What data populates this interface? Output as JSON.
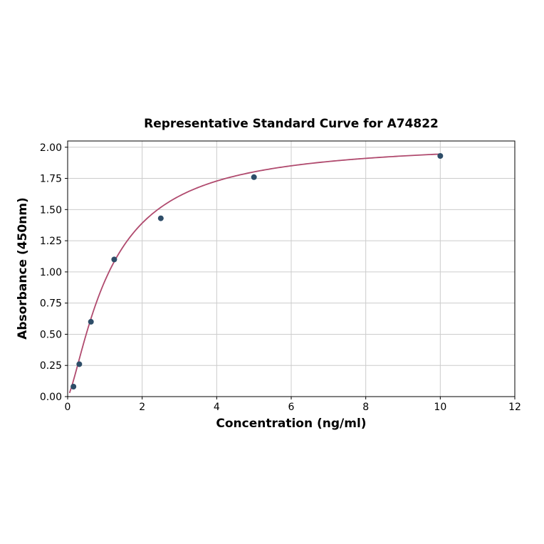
{
  "chart_data": {
    "type": "scatter",
    "title": "Representative Standard Curve for A74822",
    "xlabel": "Concentration (ng/ml)",
    "ylabel": "Absorbance (450nm)",
    "xlim": [
      0,
      12
    ],
    "ylim": [
      0,
      2.05
    ],
    "x_ticks": [
      0,
      2,
      4,
      6,
      8,
      10,
      12
    ],
    "x_tick_labels": [
      "0",
      "2",
      "4",
      "6",
      "8",
      "10",
      "12"
    ],
    "y_ticks": [
      0,
      0.25,
      0.5,
      0.75,
      1.0,
      1.25,
      1.5,
      1.75,
      2.0
    ],
    "y_tick_labels": [
      "0.00",
      "0.25",
      "0.50",
      "0.75",
      "1.00",
      "1.25",
      "1.50",
      "1.75",
      "2.00"
    ],
    "grid": true,
    "legend": false,
    "series": [
      {
        "name": "standard-points",
        "type": "scatter",
        "x": [
          0.156,
          0.3125,
          0.625,
          1.25,
          2.5,
          5,
          10
        ],
        "y": [
          0.08,
          0.26,
          0.6,
          1.1,
          1.43,
          1.76,
          1.93
        ]
      },
      {
        "name": "fitted-curve",
        "type": "line",
        "fit": "4pl",
        "params": {
          "a": 0.0,
          "b": 1.35,
          "c": 1.15,
          "d": 2.05
        },
        "x_range": [
          0.05,
          10
        ]
      }
    ],
    "colors": {
      "point": "#2e4d68",
      "curve": "#b04a6e",
      "grid": "#cccccc",
      "axis": "#000000",
      "background": "#ffffff"
    }
  }
}
